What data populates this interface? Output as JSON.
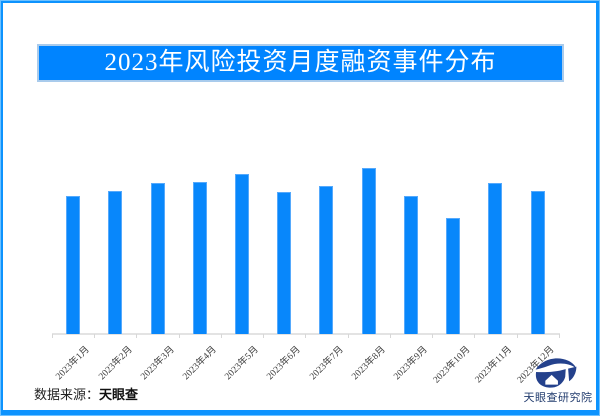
{
  "title_banner": {
    "text": "2023年风险投资月度融资事件分布",
    "bg_color": "#0084ff",
    "border_color": "#a9cbec",
    "text_color": "#ffffff"
  },
  "chart_data": {
    "type": "bar",
    "title": "2023年风险投资月度融资事件分布",
    "categories": [
      "2023年1月",
      "2023年2月",
      "2023年3月",
      "2023年4月",
      "2023年5月",
      "2023年6月",
      "2023年7月",
      "2023年8月",
      "2023年9月",
      "2023年10月",
      "2023年11月",
      "2023年12月"
    ],
    "values": [
      138,
      143,
      151,
      152,
      160,
      142,
      148,
      166,
      138,
      116,
      151,
      143
    ],
    "value_note": "no y-axis or data labels shown in image; values are relative bar heights (px), Aug highest, Oct lowest",
    "xlabel": "",
    "ylabel": "",
    "ylim": [
      0,
      180
    ],
    "grid": false,
    "legend": false,
    "bar_color": "#0887fb",
    "bar_edge_color": "#55a9fc",
    "axis_color": "#e3e3e3"
  },
  "footer": {
    "source_label": "数据来源：",
    "source_value": "天眼查"
  },
  "logo": {
    "icon": "tianyancha-eye-logo",
    "mark_color": "#24418c",
    "text": "天眼查研究院",
    "text_color": "#223c6e"
  },
  "frame": {
    "outer_color": "#6ec1ff",
    "inner_color": "#0d93fe"
  }
}
